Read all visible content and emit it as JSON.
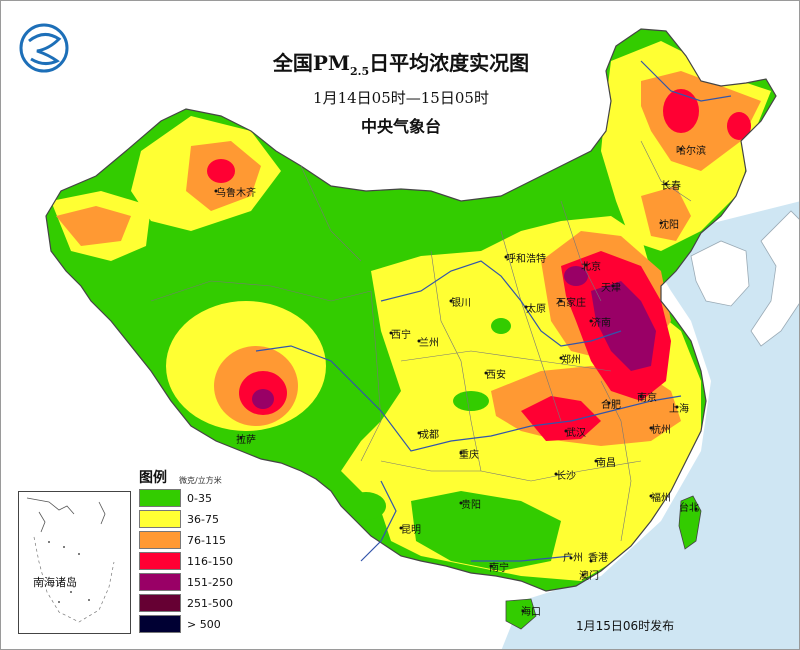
{
  "title": {
    "main_prefix": "全国PM",
    "subscript": "2.5",
    "main_suffix": "日平均浓度实况图"
  },
  "time_range": "1月14日05时—15日05时",
  "organization": "中央气象台",
  "legend": {
    "title": "图例",
    "unit": "微克/立方米",
    "items": [
      {
        "label": "0-35",
        "color": "#33cc00"
      },
      {
        "label": "36-75",
        "color": "#ffff33"
      },
      {
        "label": "76-115",
        "color": "#ff9933"
      },
      {
        "label": "116-150",
        "color": "#ff0033"
      },
      {
        "label": "151-250",
        "color": "#990066"
      },
      {
        "label": "251-500",
        "color": "#660033"
      },
      {
        "label": "> 500",
        "color": "#000033"
      }
    ]
  },
  "inset_label": "南海诸岛",
  "publish_time": "1月15日06时发布",
  "colors": {
    "sea": "#cfe6f3",
    "river": "#3355aa",
    "border": "#555555"
  },
  "cities": [
    {
      "name": "乌鲁木齐"
    },
    {
      "name": "哈尔滨"
    },
    {
      "name": "长春"
    },
    {
      "name": "沈阳"
    },
    {
      "name": "呼和浩特"
    },
    {
      "name": "北京"
    },
    {
      "name": "天津"
    },
    {
      "name": "石家庄"
    },
    {
      "name": "太原"
    },
    {
      "name": "银川"
    },
    {
      "name": "济南"
    },
    {
      "name": "西宁"
    },
    {
      "name": "兰州"
    },
    {
      "name": "郑州"
    },
    {
      "name": "西安"
    },
    {
      "name": "合肥"
    },
    {
      "name": "南京"
    },
    {
      "name": "上海"
    },
    {
      "name": "拉萨"
    },
    {
      "name": "成都"
    },
    {
      "name": "武汉"
    },
    {
      "name": "杭州"
    },
    {
      "name": "重庆"
    },
    {
      "name": "长沙"
    },
    {
      "name": "南昌"
    },
    {
      "name": "福州"
    },
    {
      "name": "台北"
    },
    {
      "name": "贵阳"
    },
    {
      "name": "昆明"
    },
    {
      "name": "南宁"
    },
    {
      "name": "广州"
    },
    {
      "name": "香港"
    },
    {
      "name": "澳门"
    },
    {
      "name": "海口"
    }
  ]
}
